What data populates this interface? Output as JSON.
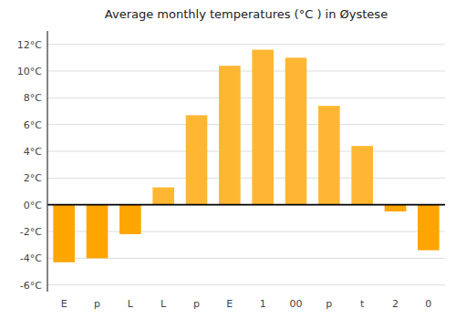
{
  "chart_data": {
    "type": "bar",
    "title": "Average monthly temperatures (°C ) in Øystese",
    "categories": [
      "E",
      "p",
      "L",
      "L",
      "p",
      "E",
      "1",
      "00",
      "p",
      "t",
      "2",
      "0"
    ],
    "values": [
      -4.3,
      -4.0,
      -2.2,
      1.3,
      6.7,
      10.4,
      11.6,
      11.0,
      7.4,
      4.4,
      -0.5,
      -3.4
    ],
    "colors": [
      "#FFA500",
      "#FFA500",
      "#FFA500",
      "#FFB733",
      "#FFB733",
      "#FFB733",
      "#FFB733",
      "#FFB733",
      "#FFB733",
      "#FFB733",
      "#FFA500",
      "#FFA500"
    ],
    "ylim": [
      -6.5,
      13
    ],
    "yticks": [
      {
        "value": -6,
        "label": "-6°C"
      },
      {
        "value": -4,
        "label": "-4°C"
      },
      {
        "value": -2,
        "label": "-2°C"
      },
      {
        "value": 0,
        "label": "0°C"
      },
      {
        "value": 2,
        "label": "2°C"
      },
      {
        "value": 4,
        "label": "4°C"
      },
      {
        "value": 6,
        "label": "6°C"
      },
      {
        "value": 8,
        "label": "8°C"
      },
      {
        "value": 10,
        "label": "10°C"
      },
      {
        "value": 12,
        "label": "12°C"
      }
    ],
    "grid": true
  }
}
